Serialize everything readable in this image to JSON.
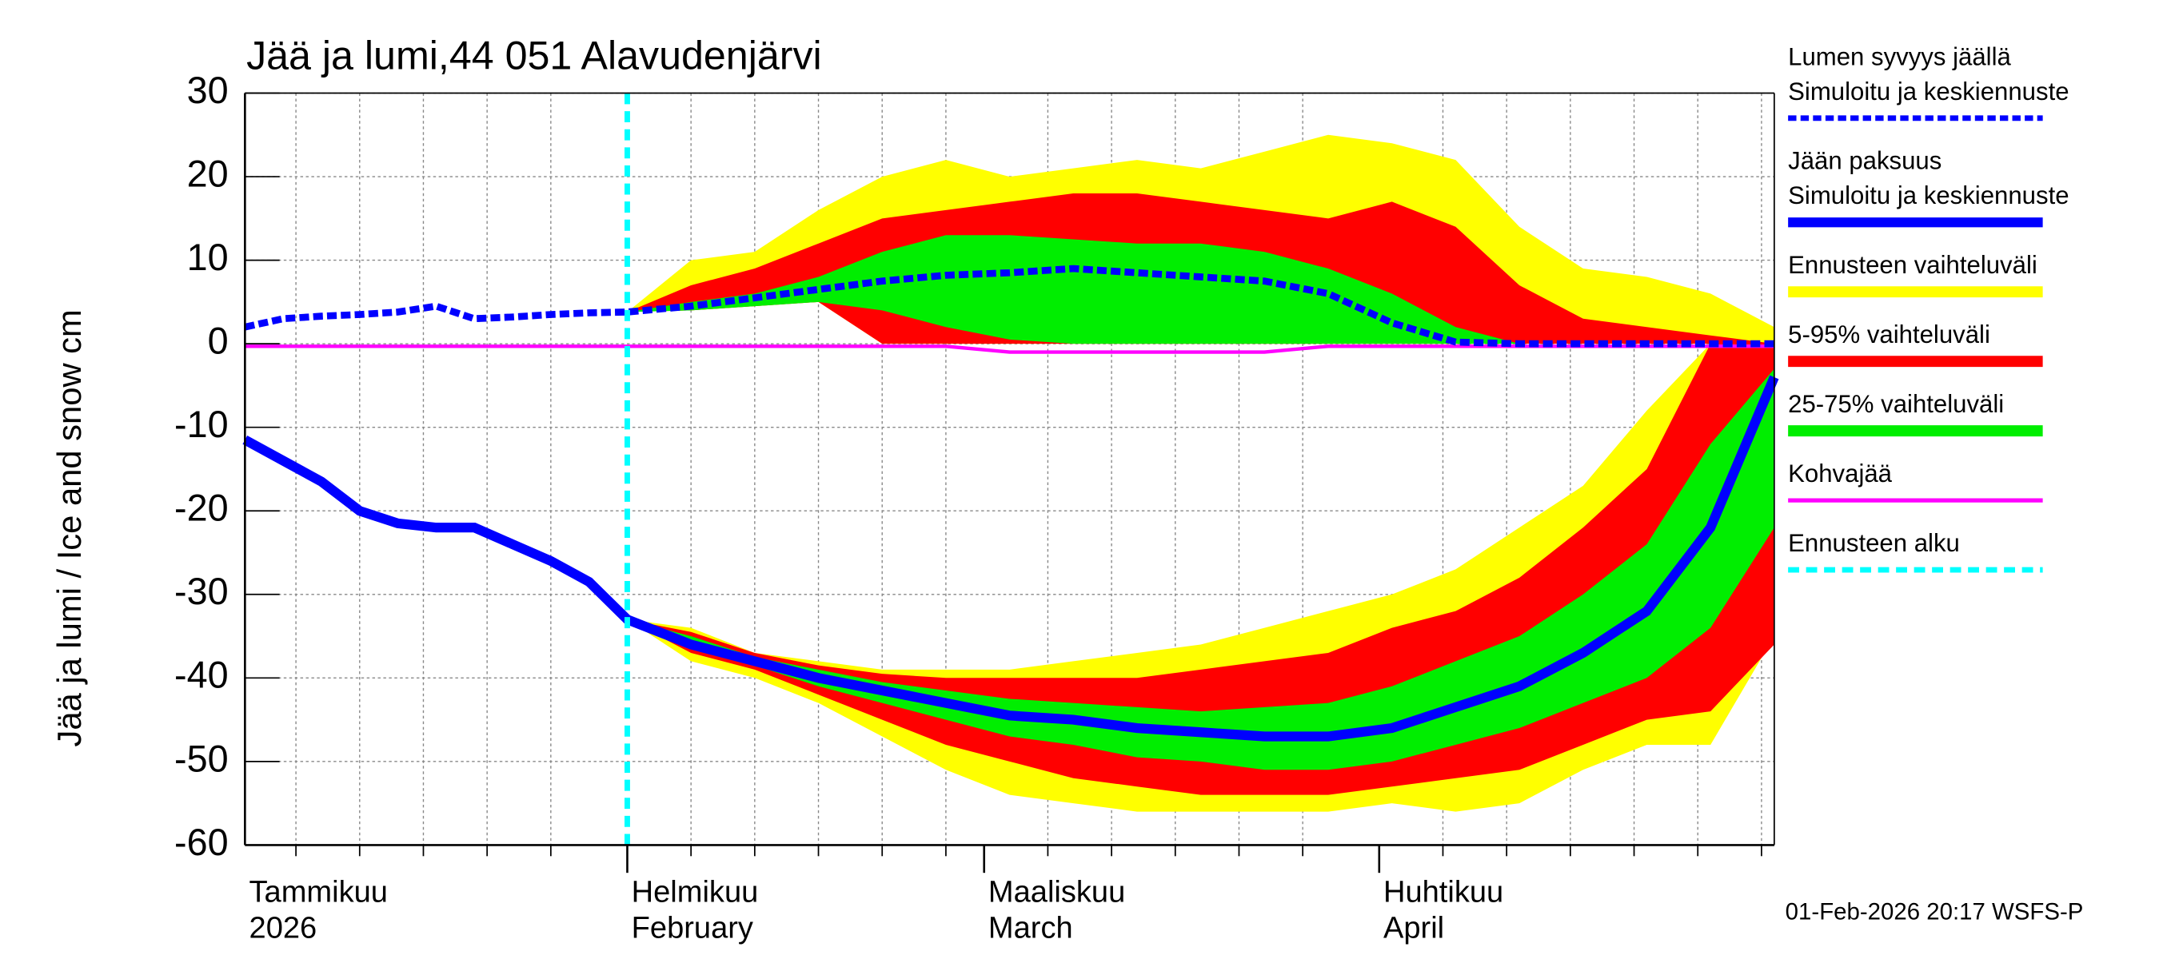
{
  "chart_data": {
    "type": "ice-snow",
    "title": "Jää ja lumi,44 051 Alavudenjärvi",
    "y_label": "Jää ja lumi / Ice and snow    cm",
    "footer": "01-Feb-2026 20:17 WSFS-P",
    "xlim": [
      1,
      121
    ],
    "xticks": [
      {
        "value": 0,
        "label": "Tammikuu"
      },
      {
        "value": 31,
        "label": "Helmikuu"
      },
      {
        "value": 59,
        "label": "Maaliskuu"
      },
      {
        "value": 90,
        "label": "Huhtikuu"
      }
    ],
    "xtick_sublabels": [
      "2026",
      "February",
      "March",
      "April"
    ],
    "xgrid": [
      5,
      10,
      15,
      20,
      25,
      36,
      41,
      46,
      51,
      56,
      64,
      69,
      74,
      79,
      84,
      95,
      100,
      105,
      110,
      115,
      120
    ],
    "ylim": [
      -60,
      30
    ],
    "yticks": [
      -60,
      -50,
      -40,
      -30,
      -20,
      -10,
      0,
      10,
      20,
      30
    ],
    "grid": true,
    "x": [
      1,
      4,
      7,
      10,
      13,
      16,
      19,
      22,
      25,
      28,
      31,
      36,
      41,
      46,
      51,
      56,
      61,
      66,
      71,
      76,
      81,
      86,
      91,
      96,
      101,
      106,
      111,
      116,
      121
    ],
    "bands": [
      {
        "name": "Ennusteen vaihteluväli",
        "color": "#ffff00",
        "snow_low": [
          null,
          null,
          null,
          null,
          null,
          null,
          null,
          null,
          null,
          null,
          3.8,
          4,
          4.5,
          5,
          0,
          0,
          0,
          0,
          0,
          0,
          0,
          0,
          0,
          0,
          0,
          0,
          0,
          0,
          0
        ],
        "snow_high": [
          null,
          null,
          null,
          null,
          null,
          null,
          null,
          null,
          null,
          null,
          3.8,
          10,
          11,
          16,
          20,
          22,
          20,
          21,
          22,
          21,
          23,
          25,
          24,
          22,
          14,
          9,
          8,
          6,
          2
        ],
        "ice_low": [
          null,
          null,
          null,
          null,
          null,
          null,
          null,
          null,
          null,
          null,
          -33,
          -38,
          -40,
          -43,
          -47,
          -51,
          -54,
          -55,
          -56,
          -56,
          -56,
          -56,
          -55,
          -56,
          -55,
          -51,
          -48,
          -48,
          -35
        ],
        "ice_high": [
          null,
          null,
          null,
          null,
          null,
          null,
          null,
          null,
          null,
          null,
          -33,
          -34,
          -37,
          -38,
          -39,
          -39,
          -39,
          -38,
          -37,
          -36,
          -34,
          -32,
          -30,
          -27,
          -22,
          -17,
          -8,
          0,
          0
        ]
      },
      {
        "name": "5-95% vaihteluväli",
        "color": "#ff0000",
        "snow_low": [
          null,
          null,
          null,
          null,
          null,
          null,
          null,
          null,
          null,
          null,
          3.8,
          4,
          4.5,
          5,
          0,
          0,
          0,
          0,
          0,
          0,
          0,
          0,
          0,
          0,
          0,
          0,
          0,
          0,
          0
        ],
        "snow_high": [
          null,
          null,
          null,
          null,
          null,
          null,
          null,
          null,
          null,
          null,
          3.8,
          7,
          9,
          12,
          15,
          16,
          17,
          18,
          18,
          17,
          16,
          15,
          17,
          14,
          7,
          3,
          2,
          1,
          0
        ],
        "ice_low": [
          null,
          null,
          null,
          null,
          null,
          null,
          null,
          null,
          null,
          null,
          -33,
          -37,
          -39,
          -42,
          -45,
          -48,
          -50,
          -52,
          -53,
          -54,
          -54,
          -54,
          -53,
          -52,
          -51,
          -48,
          -45,
          -44,
          -36
        ],
        "ice_high": [
          null,
          null,
          null,
          null,
          null,
          null,
          null,
          null,
          null,
          null,
          -33,
          -34.5,
          -37,
          -38.5,
          -39.5,
          -40,
          -40,
          -40,
          -40,
          -39,
          -38,
          -37,
          -34,
          -32,
          -28,
          -22,
          -15,
          0,
          0
        ]
      },
      {
        "name": "25-75% vaihteluväli",
        "color": "#00ee00",
        "snow_low": [
          null,
          null,
          null,
          null,
          null,
          null,
          null,
          null,
          null,
          null,
          3.8,
          4,
          4.5,
          5,
          4,
          2,
          0.5,
          0,
          0,
          0,
          0,
          0,
          0,
          0,
          0,
          0,
          0,
          0,
          0
        ],
        "snow_high": [
          null,
          null,
          null,
          null,
          null,
          null,
          null,
          null,
          null,
          null,
          3.8,
          5,
          6,
          8,
          11,
          13,
          13,
          12.5,
          12,
          12,
          11,
          9,
          6,
          2,
          0,
          0,
          0,
          0,
          0
        ],
        "ice_low": [
          null,
          null,
          null,
          null,
          null,
          null,
          null,
          null,
          null,
          null,
          -33,
          -36.5,
          -38.5,
          -41,
          -43,
          -45,
          -47,
          -48,
          -49.5,
          -50,
          -51,
          -51,
          -50,
          -48,
          -46,
          -43,
          -40,
          -34,
          -22
        ],
        "ice_high": [
          null,
          null,
          null,
          null,
          null,
          null,
          null,
          null,
          null,
          null,
          -33,
          -35,
          -37.5,
          -39,
          -40.5,
          -41.5,
          -42.5,
          -43,
          -43.5,
          -44,
          -43.5,
          -43,
          -41,
          -38,
          -35,
          -30,
          -24,
          -12,
          -3
        ]
      }
    ],
    "series": [
      {
        "name": [
          "Lumen syvyys jäällä",
          "Simuloitu ja keskiennuste"
        ],
        "color": "#0000ff",
        "dashed": true,
        "values": [
          2,
          3,
          3.3,
          3.5,
          3.8,
          4.5,
          3,
          3.2,
          3.5,
          3.7,
          3.8,
          4.5,
          5.5,
          6.5,
          7.5,
          8.2,
          8.5,
          9,
          8.5,
          8,
          7.5,
          6,
          2.5,
          0.2,
          0,
          0,
          0,
          0,
          0
        ]
      },
      {
        "name": [
          "Jään paksuus",
          "Simuloitu ja keskiennuste"
        ],
        "color": "#0000ff",
        "dashed": false,
        "values": [
          -11.5,
          -14,
          -16.5,
          -20,
          -21.5,
          -22,
          -22,
          -24,
          -26,
          -28.5,
          -33,
          -36,
          -38,
          -40,
          -41.5,
          -43,
          -44.5,
          -45,
          -46,
          -46.5,
          -47,
          -47,
          -46,
          -43.5,
          -41,
          -37,
          -32,
          -22,
          -4
        ]
      },
      {
        "name": [
          "Kohvajää"
        ],
        "color": "#ff00ff",
        "dashed": false,
        "thin": true,
        "values": [
          -0.3,
          -0.3,
          -0.3,
          -0.3,
          -0.3,
          -0.3,
          -0.3,
          -0.3,
          -0.3,
          -0.3,
          -0.3,
          -0.3,
          -0.3,
          -0.3,
          -0.3,
          -0.3,
          -1,
          -1,
          -1,
          -1,
          -1,
          -0.3,
          -0.3,
          -0.3,
          -0.3,
          -0.3,
          -0.3,
          -0.3,
          -0.3
        ]
      }
    ],
    "forecast_start": {
      "name": "Ennusteen alku",
      "x": 31,
      "color": "#00ffff"
    }
  }
}
